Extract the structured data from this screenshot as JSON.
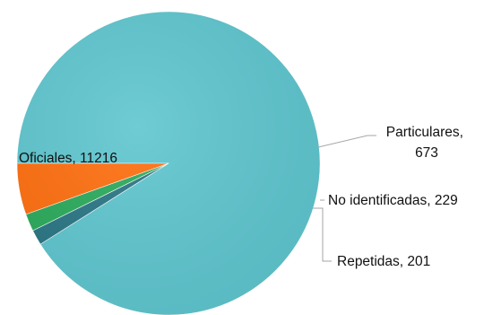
{
  "chart_data": {
    "type": "pie",
    "start_angle_deg": 180,
    "direction": "counterclockwise",
    "slices": [
      {
        "key": "oficiales",
        "label": "Oficiales",
        "value": 11216,
        "color": "#5fc6cf",
        "label_text": "Oficiales, 11216"
      },
      {
        "key": "repetidas",
        "label": "Repetidas",
        "value": 201,
        "color": "#2a7685",
        "label_text": "Repetidas, 201"
      },
      {
        "key": "no-identificadas",
        "label": "No identificadas",
        "value": 229,
        "color": "#2bab5c",
        "label_text": "No identificadas, 229"
      },
      {
        "key": "particulares",
        "label": "Particulares",
        "value": 673,
        "color": "#ff6f0f",
        "label_lines": [
          "Particulares,",
          "673"
        ]
      }
    ],
    "title": "",
    "legend": "none"
  }
}
